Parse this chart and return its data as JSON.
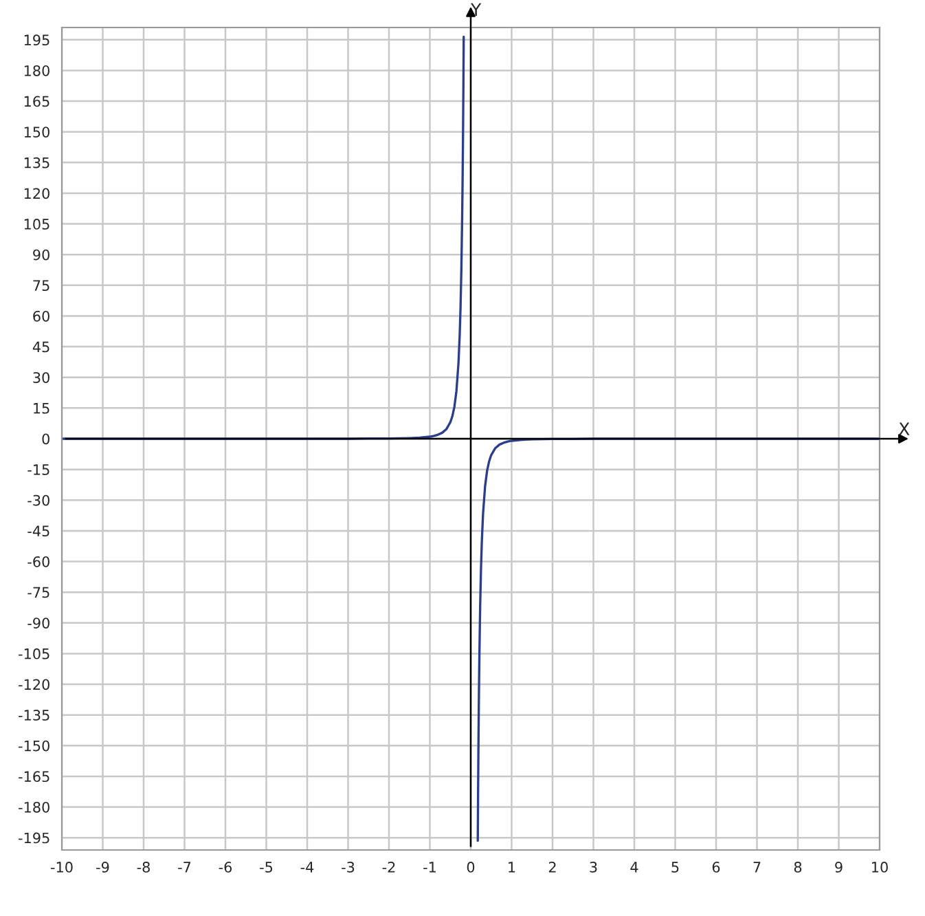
{
  "chart_data": {
    "type": "line",
    "xlabel": "X",
    "ylabel": "Y",
    "xlim": [
      -10,
      10
    ],
    "ylim": [
      -201,
      201
    ],
    "xticks": [
      -10,
      -9,
      -8,
      -7,
      -6,
      -5,
      -4,
      -3,
      -2,
      -1,
      0,
      1,
      2,
      3,
      4,
      5,
      6,
      7,
      8,
      9,
      10
    ],
    "yticks": [
      -195,
      -180,
      -165,
      -150,
      -135,
      -120,
      -105,
      -90,
      -75,
      -60,
      -45,
      -30,
      -15,
      0,
      15,
      30,
      45,
      60,
      75,
      90,
      105,
      120,
      135,
      150,
      165,
      180,
      195
    ],
    "grid": true,
    "marker": "none",
    "line_style": "solid",
    "series": [
      {
        "color": "#2b3e8c",
        "x": [
          -10,
          -8,
          -6,
          -5,
          -4,
          -3,
          -2.5,
          -2,
          -1.5,
          -1.25,
          -1,
          -0.9,
          -0.8,
          -0.7,
          -0.6,
          -0.5,
          -0.45,
          -0.4,
          -0.35,
          -0.3,
          -0.27,
          -0.25,
          -0.23,
          -0.21,
          -0.2,
          -0.19,
          -0.18,
          -0.172
        ],
        "values": [
          0,
          0,
          0,
          0,
          0,
          0,
          0.1,
          0.1,
          0.3,
          0.5,
          1,
          1.4,
          2,
          2.9,
          4.6,
          8,
          11,
          15.6,
          23.3,
          37,
          50.8,
          64,
          82.2,
          108,
          125,
          145.8,
          171.5,
          196.5
        ]
      },
      {
        "color": "#2b3e8c",
        "x": [
          0.172,
          0.18,
          0.19,
          0.2,
          0.21,
          0.23,
          0.25,
          0.27,
          0.3,
          0.35,
          0.4,
          0.45,
          0.5,
          0.6,
          0.7,
          0.8,
          0.9,
          1,
          1.25,
          1.5,
          2,
          2.5,
          3,
          4,
          5,
          6,
          8,
          10
        ],
        "values": [
          -196.5,
          -171.5,
          -145.8,
          -125,
          -108,
          -82.2,
          -64,
          -50.8,
          -37,
          -23.3,
          -15.6,
          -11,
          -8,
          -4.6,
          -2.9,
          -2,
          -1.4,
          -1,
          -0.5,
          -0.3,
          -0.1,
          -0.1,
          0,
          0,
          0,
          0,
          0,
          0
        ]
      }
    ]
  }
}
